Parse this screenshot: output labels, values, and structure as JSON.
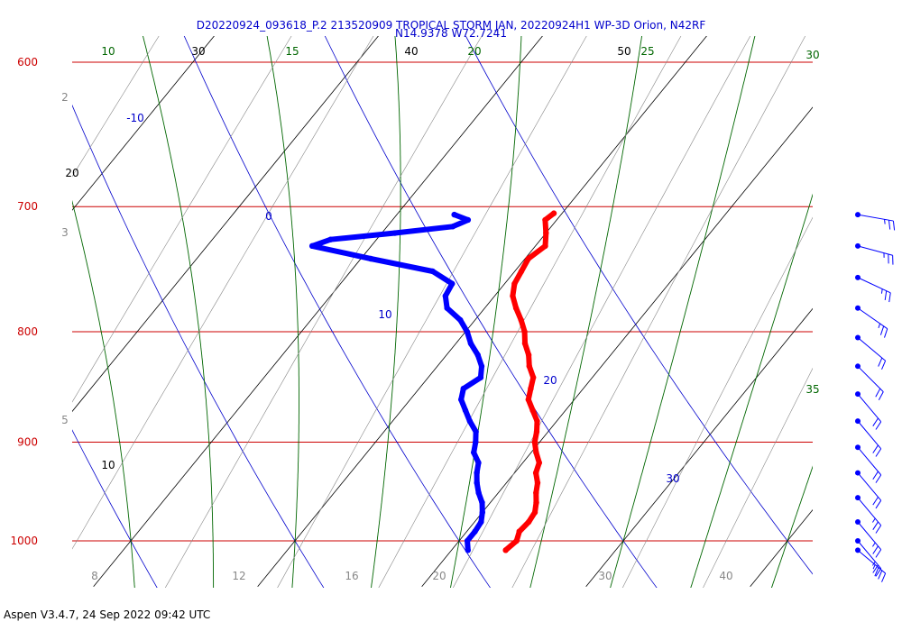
{
  "header": {
    "title_line1": "D20220924_093618_P.2 213520909 TROPICAL STORM JAN, 20220924H1 WP-3D Orion, N42RF",
    "title_line2": "N14.9378 W72.7241"
  },
  "footer": {
    "text": "Aspen V3.4.7, 24 Sep 2022  09:42 UTC"
  },
  "colors": {
    "isobar": "#cc0000",
    "isotherm": "#000000",
    "dry_adiabat": "#0000cc",
    "moist_adiabat": "#006600",
    "mixing_ratio": "#888888",
    "temperature": "#ff0000",
    "dewpoint": "#0000ff",
    "wind": "#0000ff"
  },
  "chart_data": {
    "type": "skew-t",
    "pressure_range_hPa": [
      1050,
      600
    ],
    "isobars": [
      "600",
      "700",
      "800",
      "900",
      "1000"
    ],
    "isotherm_labels": [
      "10",
      "20",
      "30",
      "40",
      "50"
    ],
    "dry_adiabat_labels": [
      "-10",
      "0",
      "10",
      "20",
      "30"
    ],
    "moist_adiabat_labels": [
      "10",
      "15",
      "20",
      "25",
      "30",
      "35"
    ],
    "mixing_ratio_labels": [
      "2",
      "3",
      "5",
      "8",
      "12",
      "16",
      "20",
      "30",
      "40"
    ],
    "temperature_profile": [
      {
        "p": 1010,
        "t": 23.3
      },
      {
        "p": 1000,
        "t": 23.5
      },
      {
        "p": 990,
        "t": 23.2
      },
      {
        "p": 980,
        "t": 23.3
      },
      {
        "p": 970,
        "t": 23.2
      },
      {
        "p": 960,
        "t": 22.8
      },
      {
        "p": 950,
        "t": 22.3
      },
      {
        "p": 940,
        "t": 21.9
      },
      {
        "p": 930,
        "t": 21.3
      },
      {
        "p": 920,
        "t": 21.0
      },
      {
        "p": 910,
        "t": 20.3
      },
      {
        "p": 900,
        "t": 19.7
      },
      {
        "p": 890,
        "t": 19.3
      },
      {
        "p": 880,
        "t": 18.8
      },
      {
        "p": 870,
        "t": 18.0
      },
      {
        "p": 860,
        "t": 17.2
      },
      {
        "p": 850,
        "t": 16.8
      },
      {
        "p": 840,
        "t": 16.4
      },
      {
        "p": 830,
        "t": 15.6
      },
      {
        "p": 820,
        "t": 15.0
      },
      {
        "p": 810,
        "t": 14.2
      },
      {
        "p": 800,
        "t": 13.6
      },
      {
        "p": 790,
        "t": 12.8
      },
      {
        "p": 780,
        "t": 11.9
      },
      {
        "p": 770,
        "t": 11.1
      },
      {
        "p": 760,
        "t": 10.6
      },
      {
        "p": 750,
        "t": 10.4
      },
      {
        "p": 740,
        "t": 10.2
      },
      {
        "p": 730,
        "t": 10.6
      },
      {
        "p": 720,
        "t": 10.0
      },
      {
        "p": 710,
        "t": 9.3
      },
      {
        "p": 705,
        "t": 9.5
      }
    ],
    "dewpoint_profile": [
      {
        "p": 1010,
        "t": 21.0
      },
      {
        "p": 1000,
        "t": 20.5
      },
      {
        "p": 990,
        "t": 20.5
      },
      {
        "p": 980,
        "t": 20.4
      },
      {
        "p": 970,
        "t": 20.0
      },
      {
        "p": 960,
        "t": 19.5
      },
      {
        "p": 950,
        "t": 18.8
      },
      {
        "p": 940,
        "t": 18.2
      },
      {
        "p": 930,
        "t": 17.7
      },
      {
        "p": 920,
        "t": 17.3
      },
      {
        "p": 910,
        "t": 16.5
      },
      {
        "p": 900,
        "t": 16.1
      },
      {
        "p": 890,
        "t": 15.6
      },
      {
        "p": 880,
        "t": 14.7
      },
      {
        "p": 870,
        "t": 13.9
      },
      {
        "p": 860,
        "t": 13.1
      },
      {
        "p": 850,
        "t": 12.7
      },
      {
        "p": 840,
        "t": 13.2
      },
      {
        "p": 830,
        "t": 12.7
      },
      {
        "p": 820,
        "t": 11.9
      },
      {
        "p": 810,
        "t": 10.9
      },
      {
        "p": 800,
        "t": 10.1
      },
      {
        "p": 790,
        "t": 9.1
      },
      {
        "p": 780,
        "t": 7.7
      },
      {
        "p": 770,
        "t": 7.0
      },
      {
        "p": 760,
        "t": 6.8
      },
      {
        "p": 750,
        "t": 5.0
      },
      {
        "p": 740,
        "t": 0.6
      },
      {
        "p": 730,
        "t": -3.6
      },
      {
        "p": 725,
        "t": -2.8
      },
      {
        "p": 720,
        "t": 0.8
      },
      {
        "p": 715,
        "t": 4.0
      },
      {
        "p": 710,
        "t": 4.6
      },
      {
        "p": 706,
        "t": 3.5
      }
    ],
    "wind_barbs": [
      {
        "p": 706,
        "dir": 100,
        "spd": 25
      },
      {
        "p": 730,
        "dir": 105,
        "spd": 25
      },
      {
        "p": 755,
        "dir": 115,
        "spd": 25
      },
      {
        "p": 780,
        "dir": 125,
        "spd": 25
      },
      {
        "p": 805,
        "dir": 130,
        "spd": 20
      },
      {
        "p": 830,
        "dir": 135,
        "spd": 20
      },
      {
        "p": 855,
        "dir": 140,
        "spd": 20
      },
      {
        "p": 880,
        "dir": 140,
        "spd": 20
      },
      {
        "p": 905,
        "dir": 140,
        "spd": 20
      },
      {
        "p": 930,
        "dir": 140,
        "spd": 20
      },
      {
        "p": 955,
        "dir": 140,
        "spd": 25
      },
      {
        "p": 980,
        "dir": 140,
        "spd": 25
      },
      {
        "p": 1000,
        "dir": 140,
        "spd": 25
      },
      {
        "p": 1010,
        "dir": 130,
        "spd": 35
      }
    ]
  }
}
